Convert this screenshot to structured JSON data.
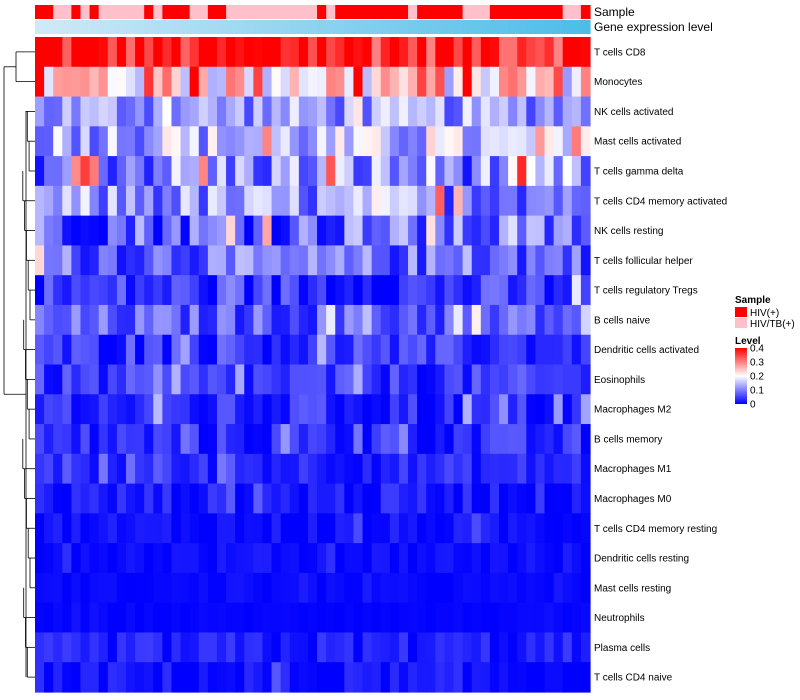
{
  "chart_data": {
    "type": "heatmap",
    "title": "",
    "annotation_labels": {
      "sample": "Sample",
      "expression": "Gene expression level"
    },
    "sample_groups": [
      "HIV(+)",
      "HIV/TB(+)"
    ],
    "sample_colors": {
      "HIV(+)": "#ff0000",
      "HIV/TB(+)": "#ffc0cb"
    },
    "sample_assignment": [
      0,
      0,
      1,
      1,
      0,
      1,
      0,
      1,
      1,
      1,
      1,
      1,
      0,
      1,
      0,
      0,
      0,
      1,
      1,
      0,
      0,
      1,
      1,
      1,
      1,
      1,
      1,
      1,
      1,
      1,
      1,
      0,
      1,
      0,
      0,
      0,
      0,
      0,
      0,
      0,
      0,
      1,
      0,
      0,
      0,
      0,
      0,
      1,
      1,
      1,
      0,
      0,
      0,
      0,
      0,
      0,
      0,
      0,
      1,
      1,
      0
    ],
    "expression_gradient": {
      "from": "#cfe9f7",
      "to": "#4dbde8"
    },
    "rows": [
      "T cells CD8",
      "Monocytes",
      "NK cells activated",
      "Mast cells activated",
      "T cells gamma delta",
      "T cells CD4 memory activated",
      "NK cells resting",
      "T cells follicular helper",
      "T cells regulatory  Tregs",
      "B cells naive",
      "Dendritic cells activated",
      "Eosinophils",
      "Macrophages M2",
      "B cells memory",
      "Macrophages M1",
      "Macrophages M0",
      "T cells CD4 memory resting",
      "Dendritic cells resting",
      "Mast cells resting",
      "Neutrophils",
      "Plasma cells",
      "T cells CD4 naive"
    ],
    "row_means": [
      0.38,
      0.24,
      0.12,
      0.14,
      0.11,
      0.11,
      0.08,
      0.08,
      0.04,
      0.07,
      0.04,
      0.04,
      0.03,
      0.03,
      0.03,
      0.02,
      0.01,
      0.01,
      0.005,
      0.003,
      0.02,
      0.01
    ],
    "row_spreads": [
      0.06,
      0.09,
      0.05,
      0.06,
      0.07,
      0.06,
      0.06,
      0.05,
      0.04,
      0.04,
      0.03,
      0.03,
      0.03,
      0.03,
      0.02,
      0.02,
      0.015,
      0.01,
      0.005,
      0.003,
      0.02,
      0.02
    ],
    "n_samples": 61,
    "color_scale": {
      "min": 0,
      "max": 0.4,
      "colors": [
        "#0000ff",
        "#ffffff",
        "#ff0000"
      ]
    },
    "legend": {
      "sample_title": "Sample",
      "level_title": "Level",
      "level_ticks": [
        "0.4",
        "0.3",
        "0.2",
        "0.1",
        "0"
      ],
      "level_tick_values": [
        0.4,
        0.3,
        0.2,
        0.1,
        0
      ]
    },
    "dendrogram": true
  }
}
